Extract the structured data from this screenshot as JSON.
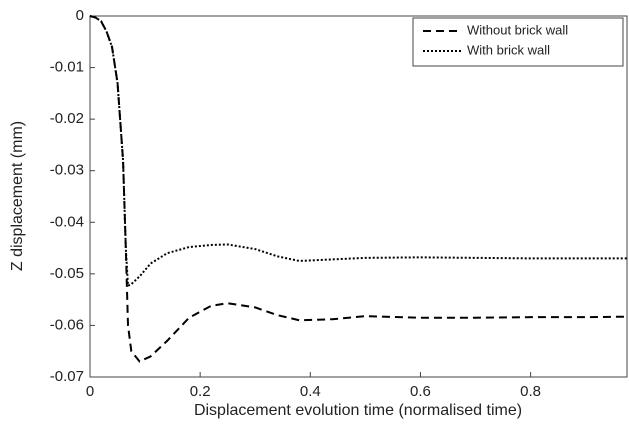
{
  "chart_data": {
    "type": "line",
    "x_label": "Displacement evolution time (normalised time)",
    "y_label": "Z displacement (mm)",
    "x": [
      0,
      0.01,
      0.02,
      0.03,
      0.04,
      0.05,
      0.06,
      0.065,
      0.069,
      0.075,
      0.09,
      0.11,
      0.14,
      0.18,
      0.22,
      0.25,
      0.3,
      0.34,
      0.38,
      0.44,
      0.5,
      0.6,
      0.7,
      0.8,
      0.9,
      0.975
    ],
    "series": [
      {
        "name": "Without brick wall",
        "color": "#000000",
        "dash": "8,5",
        "values": [
          0,
          -0.0003,
          -0.001,
          -0.003,
          -0.006,
          -0.013,
          -0.028,
          -0.045,
          -0.06,
          -0.065,
          -0.067,
          -0.066,
          -0.063,
          -0.0585,
          -0.0562,
          -0.0557,
          -0.0565,
          -0.058,
          -0.059,
          -0.0588,
          -0.0582,
          -0.0585,
          -0.0585,
          -0.0584,
          -0.0584,
          -0.0583
        ]
      },
      {
        "name": "With brick wall",
        "color": "#000000",
        "dash": "2,2",
        "values": [
          0,
          -0.0003,
          -0.001,
          -0.003,
          -0.006,
          -0.013,
          -0.028,
          -0.045,
          -0.0523,
          -0.052,
          -0.0505,
          -0.048,
          -0.046,
          -0.0448,
          -0.0444,
          -0.0443,
          -0.0452,
          -0.0466,
          -0.0475,
          -0.0472,
          -0.0469,
          -0.0468,
          -0.0469,
          -0.047,
          -0.047,
          -0.047
        ]
      }
    ],
    "xlim": [
      0,
      0.975
    ],
    "xticks": [
      0,
      0.2,
      0.4,
      0.6,
      0.8
    ],
    "ylim": [
      -0.07,
      0
    ],
    "yticks": [
      0,
      -0.01,
      -0.02,
      -0.03,
      -0.04,
      -0.05,
      -0.06,
      -0.07
    ],
    "legend": "upper right"
  }
}
